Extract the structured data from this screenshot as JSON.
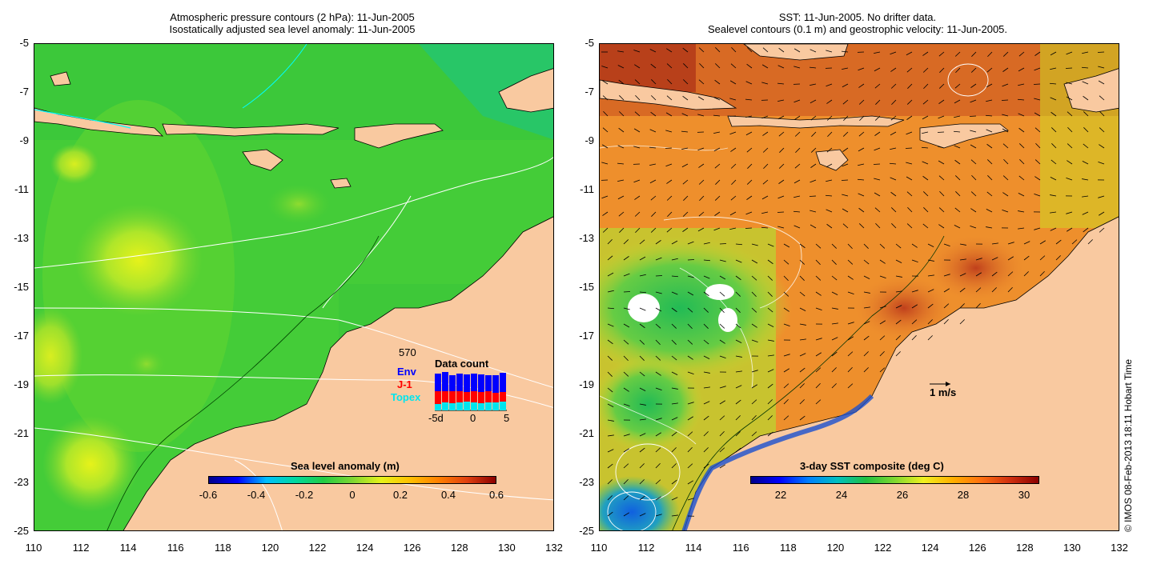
{
  "left_panel": {
    "title_line1": "Atmospheric pressure contours (2 hPa): 11-Jun-2005",
    "title_line2": "Isostatically adjusted sea level anomaly: 11-Jun-2005",
    "colorbar_label": "Sea level anomaly (m)",
    "colorbar_ticks": [
      "-0.6",
      "-0.4",
      "-0.2",
      "0",
      "0.2",
      "0.4",
      "0.6"
    ],
    "colorbar_range": [
      -0.6,
      0.6
    ],
    "data_count": {
      "title": "Data count",
      "total": "570",
      "legend": [
        {
          "label": "Env",
          "color": "#0000ff"
        },
        {
          "label": "J-1",
          "color": "#ff0000"
        },
        {
          "label": "Topex",
          "color": "#00e5ee"
        }
      ],
      "x_ticks": [
        "-5d",
        "0",
        "5"
      ]
    }
  },
  "right_panel": {
    "title_line1": "SST: 11-Jun-2005. No drifter data.",
    "title_line2": "Sealevel contours (0.1 m) and geostrophic velocity: 11-Jun-2005.",
    "colorbar_label": "3-day SST composite (deg C)",
    "colorbar_ticks": [
      "22",
      "24",
      "26",
      "28",
      "30"
    ],
    "colorbar_range": [
      21,
      30.5
    ],
    "velocity_scale_label": "1 m/s"
  },
  "axes": {
    "lat_ticks": [
      "-5",
      "-7",
      "-9",
      "-11",
      "-13",
      "-15",
      "-17",
      "-19",
      "-21",
      "-23",
      "-25"
    ],
    "lon_ticks": [
      "110",
      "112",
      "114",
      "116",
      "118",
      "120",
      "122",
      "124",
      "126",
      "128",
      "130",
      "132"
    ],
    "lat_range": [
      -25,
      -5
    ],
    "lon_range": [
      110,
      132
    ]
  },
  "credit": "© IMOS 08-Feb-2013 18:11 Hobart Time",
  "colors": {
    "land": "#f9c9a0",
    "sla_ocean": "#33cc33",
    "sst_ocean": "#ec8c2c"
  }
}
